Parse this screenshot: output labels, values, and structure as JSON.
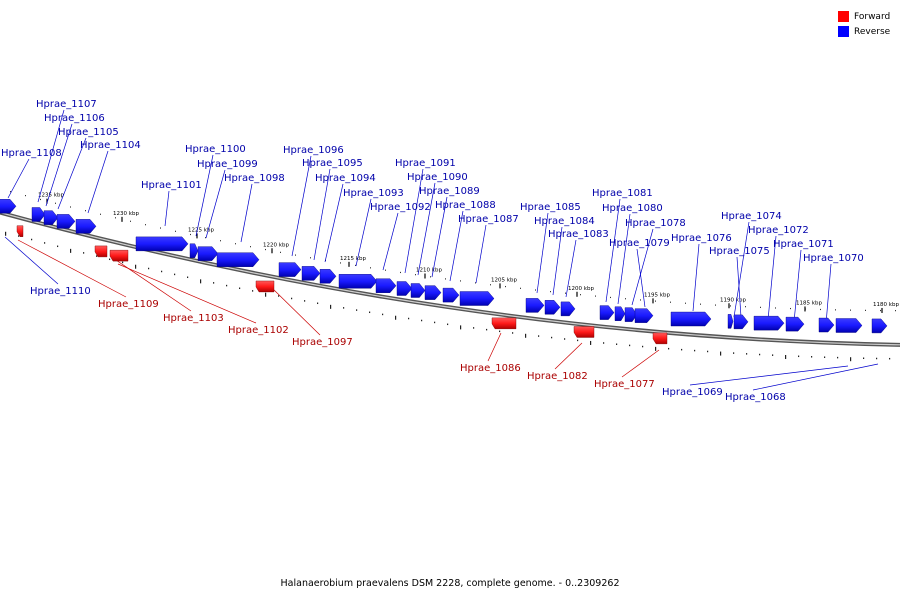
{
  "legend": {
    "forward_label": "Forward",
    "reverse_label": "Reverse",
    "forward_color": "#ff0000",
    "reverse_color": "#0000ff"
  },
  "caption": "Halanaerobium praevalens DSM 2228, complete genome. - 0..2309262",
  "track": {
    "ticks": [
      "1235 kbp",
      "1230 kbp",
      "1225 kbp",
      "1220 kbp",
      "1215 kbp",
      "1210 kbp",
      "1205 kbp",
      "1200 kbp",
      "1195 kbp",
      "1190 kbp",
      "1185 kbp",
      "1180 kbp"
    ]
  },
  "genes": {
    "reverse": [
      "Hprae_1108",
      "Hprae_1107",
      "Hprae_1106",
      "Hprae_1105",
      "Hprae_1104",
      "Hprae_1101",
      "Hprae_1100",
      "Hprae_1099",
      "Hprae_1098",
      "Hprae_1096",
      "Hprae_1095",
      "Hprae_1094",
      "Hprae_1093",
      "Hprae_1092",
      "Hprae_1091",
      "Hprae_1090",
      "Hprae_1089",
      "Hprae_1088",
      "Hprae_1087",
      "Hprae_1085",
      "Hprae_1084",
      "Hprae_1083",
      "Hprae_1081",
      "Hprae_1080",
      "Hprae_1078",
      "Hprae_1079",
      "Hprae_1076",
      "Hprae_1074",
      "Hprae_1075",
      "Hprae_1072",
      "Hprae_1071",
      "Hprae_1070",
      "Hprae_1110",
      "Hprae_1069",
      "Hprae_1068"
    ],
    "forward": [
      "Hprae_1109",
      "Hprae_1103",
      "Hprae_1102",
      "Hprae_1097",
      "Hprae_1086",
      "Hprae_1082",
      "Hprae_1077"
    ]
  }
}
